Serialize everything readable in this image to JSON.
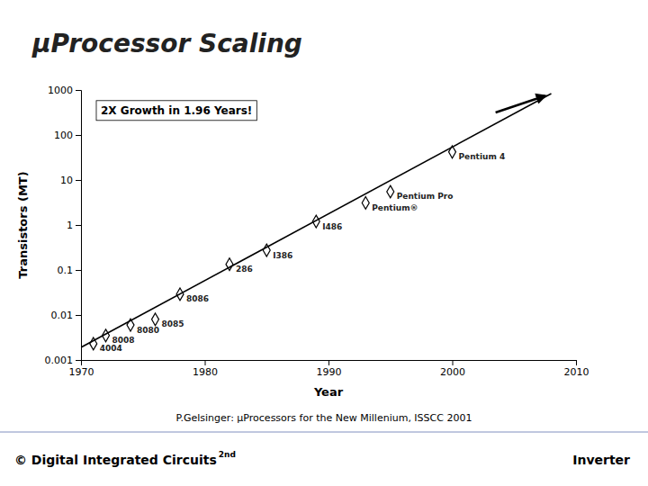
{
  "chart_data": {
    "type": "scatter",
    "title": "μProcessor Scaling",
    "xlabel": "Year",
    "ylabel": "Transistors (MT)",
    "log": "y",
    "grid": false,
    "xlim": [
      1970,
      2010
    ],
    "ylim": [
      0.001,
      1000
    ],
    "xticks": [
      1970,
      1980,
      1990,
      2000,
      2010
    ],
    "yticks": [
      0.001,
      0.01,
      0.1,
      1,
      10,
      100,
      1000
    ],
    "annotations": [
      "2X Growth in 1.96 Years!"
    ],
    "caption": "P.Gelsinger: μProcessors for the New Millenium, ISSCC 2001",
    "footer_left": "© Digital Integrated Circuits",
    "footer_left_super": "2nd",
    "footer_right": "Inverter",
    "series": [
      {
        "type": "scatter",
        "marker": "diamond",
        "x": [
          1971,
          1972,
          1974,
          1976,
          1978,
          1982,
          1985,
          1989,
          1993,
          1995,
          2000
        ],
        "values": [
          0.0023,
          0.0035,
          0.006,
          0.008,
          0.029,
          0.134,
          0.275,
          1.2,
          3.1,
          5.5,
          42.0
        ],
        "labels": [
          "4004",
          "8008",
          "8080",
          "8085",
          "8086",
          "286",
          "I386",
          "I486",
          "Pentium®",
          "Pentium Pro",
          "Pentium 4"
        ]
      },
      {
        "type": "line",
        "color": "black",
        "x": [
          1970,
          2008
        ],
        "values": [
          0.0019054607179632,
          831.763771102671
        ]
      },
      {
        "type": "arrow",
        "color": "black",
        "x": [
          2003.5,
          2007.5
        ],
        "values": [
          316.22776601683796,
          741.3102413009175
        ]
      }
    ]
  }
}
